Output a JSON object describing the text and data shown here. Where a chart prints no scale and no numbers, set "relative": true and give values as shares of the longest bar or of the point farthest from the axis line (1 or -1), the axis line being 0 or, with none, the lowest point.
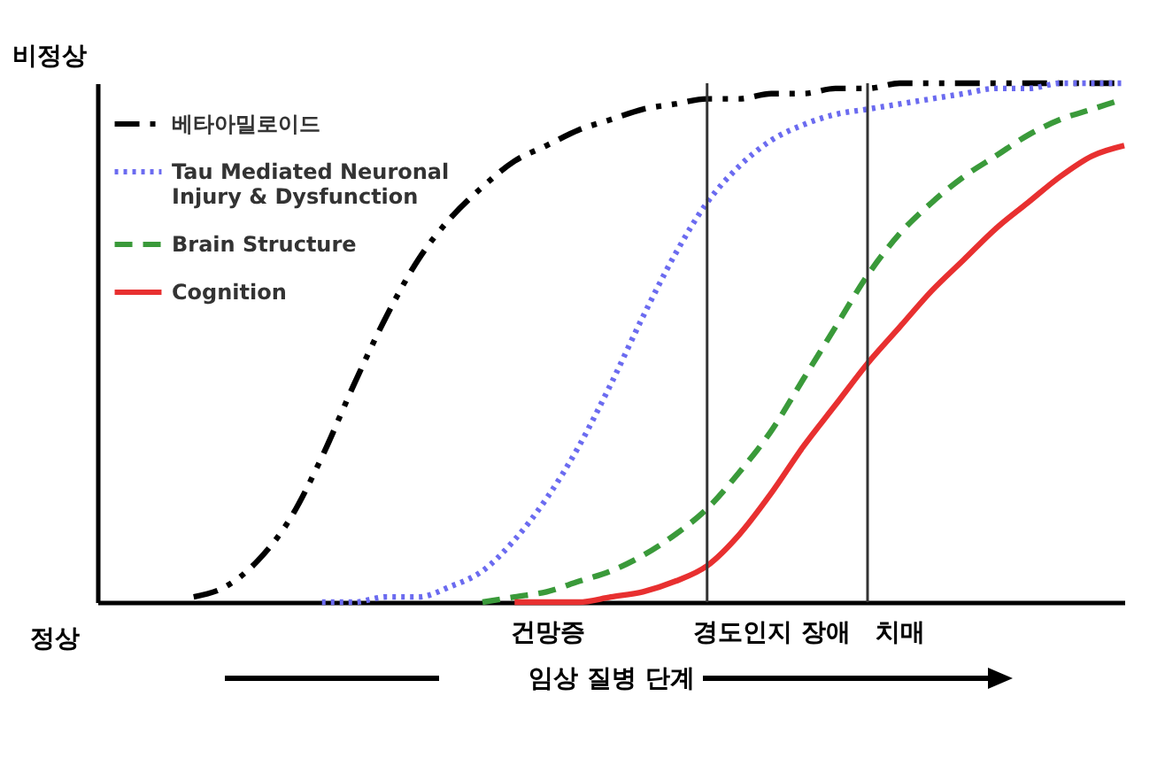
{
  "chart_data": {
    "type": "line",
    "relative": true,
    "xlabel": "임상 질병 단계",
    "categories": [
      null,
      null,
      null,
      null,
      null,
      null,
      null,
      null,
      null,
      null,
      null,
      null,
      null,
      null,
      "건망증",
      null,
      null,
      null,
      null,
      null,
      null,
      "경도인지 장애",
      null,
      null,
      null,
      "치매",
      null,
      null,
      null,
      null,
      null,
      null,
      null
    ],
    "series": [
      {
        "name": "베타아밀로이드",
        "color": "#000000",
        "line_style": "dashdot",
        "values": [
          null,
          null,
          null,
          0.01,
          0.03,
          0.08,
          0.16,
          0.28,
          0.42,
          0.55,
          0.66,
          0.74,
          0.8,
          0.85,
          0.88,
          0.91,
          0.93,
          0.95,
          0.96,
          0.97,
          0.97,
          0.98,
          0.98,
          0.99,
          0.99,
          1,
          1,
          1,
          1,
          1,
          1,
          1,
          1
        ]
      },
      {
        "name": "Tau Mediated Neuronal Injury & Dysfunction",
        "color": "#6b6bf0",
        "line_style": "dotted",
        "values": [
          null,
          null,
          null,
          null,
          null,
          null,
          null,
          0,
          0,
          0.01,
          0.01,
          0.03,
          0.06,
          0.12,
          0.2,
          0.3,
          0.42,
          0.55,
          0.67,
          0.77,
          0.84,
          0.89,
          0.92,
          0.94,
          0.95,
          0.96,
          0.97,
          0.98,
          0.99,
          0.99,
          1,
          1,
          1
        ]
      },
      {
        "name": "Brain Structure",
        "color": "#3a9a3a",
        "line_style": "dashed",
        "values": [
          null,
          null,
          null,
          null,
          null,
          null,
          null,
          null,
          null,
          null,
          null,
          null,
          0,
          0.01,
          0.02,
          0.04,
          0.06,
          0.09,
          0.13,
          0.18,
          0.25,
          0.33,
          0.43,
          0.53,
          0.63,
          0.71,
          0.77,
          0.82,
          0.86,
          0.9,
          0.93,
          0.95,
          0.97
        ]
      },
      {
        "name": "Cognition",
        "color": "#e83030",
        "line_style": "solid",
        "values": [
          null,
          null,
          null,
          null,
          null,
          null,
          null,
          null,
          null,
          null,
          null,
          null,
          null,
          0,
          0,
          0,
          0.01,
          0.02,
          0.04,
          0.07,
          0.13,
          0.21,
          0.3,
          0.38,
          0.46,
          0.53,
          0.6,
          0.66,
          0.72,
          0.77,
          0.82,
          0.86,
          0.88
        ]
      }
    ],
    "annotations": [
      "비정상",
      "정상"
    ],
    "legend": "top left"
  }
}
